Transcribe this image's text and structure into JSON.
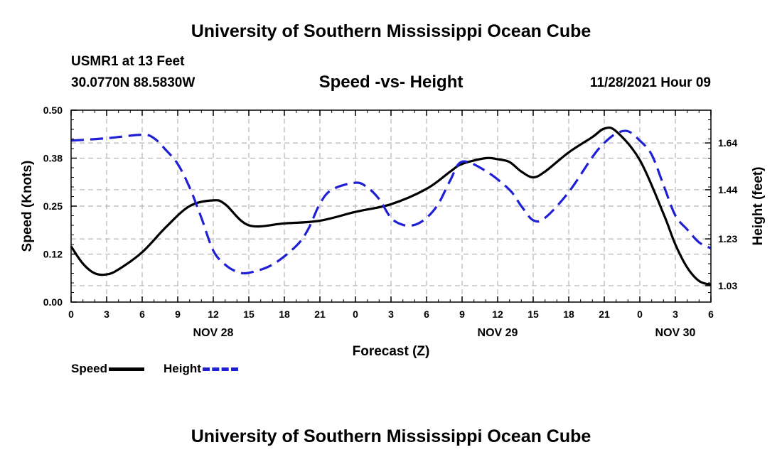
{
  "header": {
    "main_title": "University of Southern Mississippi Ocean Cube",
    "station": "USMR1 at 13 Feet",
    "coords": "30.0770N  88.5830W",
    "subtitle": "Speed -vs- Height",
    "datestamp": "11/28/2021 Hour 09"
  },
  "footer": {
    "title": "University of Southern Mississippi Ocean Cube"
  },
  "legend": {
    "speed_label": "Speed",
    "height_label": "Height"
  },
  "colors": {
    "speed": "#000000",
    "height": "#1f1fd6",
    "grid": "#b4b4b4"
  },
  "chart_data": {
    "type": "line",
    "title": "Speed -vs- Height",
    "xlabel": "Forecast (Z)",
    "ylabel": "Speed (Knots)",
    "y2label": "Height (feet)",
    "x_range_hours": [
      0,
      54
    ],
    "ylim": [
      0,
      0.5
    ],
    "y2lim": [
      0.96,
      1.78
    ],
    "grid": true,
    "x_ticks": [
      {
        "h": 0,
        "label": "0"
      },
      {
        "h": 3,
        "label": "3"
      },
      {
        "h": 6,
        "label": "6"
      },
      {
        "h": 9,
        "label": "9"
      },
      {
        "h": 12,
        "label": "12"
      },
      {
        "h": 15,
        "label": "15"
      },
      {
        "h": 18,
        "label": "18"
      },
      {
        "h": 21,
        "label": "21"
      },
      {
        "h": 24,
        "label": "0"
      },
      {
        "h": 27,
        "label": "3"
      },
      {
        "h": 30,
        "label": "6"
      },
      {
        "h": 33,
        "label": "9"
      },
      {
        "h": 36,
        "label": "12"
      },
      {
        "h": 39,
        "label": "15"
      },
      {
        "h": 42,
        "label": "18"
      },
      {
        "h": 45,
        "label": "21"
      },
      {
        "h": 48,
        "label": "0"
      },
      {
        "h": 51,
        "label": "3"
      },
      {
        "h": 54,
        "label": "6"
      }
    ],
    "day_labels": [
      {
        "h": 12,
        "label": "NOV 28"
      },
      {
        "h": 36,
        "label": "NOV 29"
      },
      {
        "h": 51,
        "label": "NOV 30"
      }
    ],
    "y_ticks": [
      {
        "v": 0.0,
        "label": "0.00"
      },
      {
        "v": 0.125,
        "label": "0.12"
      },
      {
        "v": 0.25,
        "label": "0.25"
      },
      {
        "v": 0.375,
        "label": "0.38"
      },
      {
        "v": 0.5,
        "label": "0.50"
      }
    ],
    "y2_ticks": [
      {
        "v": 1.03,
        "label": "1.03"
      },
      {
        "v": 1.23,
        "label": "1.23"
      },
      {
        "v": 1.44,
        "label": "1.44"
      },
      {
        "v": 1.64,
        "label": "1.64"
      }
    ],
    "series": [
      {
        "name": "Speed",
        "axis": "left",
        "x": [
          0,
          1,
          2,
          3,
          4,
          6,
          8,
          10,
          12,
          13,
          15,
          18,
          21,
          24,
          27,
          30,
          32,
          33,
          35,
          36,
          37,
          38,
          39,
          40,
          42,
          44,
          45,
          46,
          48,
          50,
          51,
          52,
          53,
          54
        ],
        "y": [
          0.145,
          0.1,
          0.075,
          0.072,
          0.085,
          0.13,
          0.195,
          0.25,
          0.265,
          0.255,
          0.2,
          0.205,
          0.212,
          0.235,
          0.255,
          0.295,
          0.34,
          0.36,
          0.375,
          0.372,
          0.365,
          0.34,
          0.325,
          0.34,
          0.39,
          0.43,
          0.452,
          0.445,
          0.37,
          0.23,
          0.15,
          0.09,
          0.055,
          0.045
        ]
      },
      {
        "name": "Height",
        "axis": "right",
        "x": [
          0,
          3,
          6,
          7,
          8,
          9,
          10,
          11,
          12,
          13,
          14,
          15,
          17,
          19,
          20,
          21,
          22,
          24,
          25,
          26,
          27,
          28,
          29,
          30,
          31,
          32,
          33,
          35,
          37,
          38,
          39,
          40,
          42,
          44,
          45,
          46,
          47,
          48,
          49,
          50,
          51,
          52,
          53,
          54
        ],
        "y": [
          1.65,
          1.66,
          1.675,
          1.66,
          1.61,
          1.55,
          1.45,
          1.32,
          1.18,
          1.12,
          1.09,
          1.085,
          1.12,
          1.2,
          1.27,
          1.38,
          1.44,
          1.47,
          1.45,
          1.4,
          1.32,
          1.29,
          1.29,
          1.32,
          1.38,
          1.48,
          1.56,
          1.52,
          1.44,
          1.37,
          1.31,
          1.32,
          1.43,
          1.58,
          1.64,
          1.68,
          1.69,
          1.65,
          1.59,
          1.46,
          1.33,
          1.27,
          1.215,
          1.19
        ]
      }
    ]
  }
}
